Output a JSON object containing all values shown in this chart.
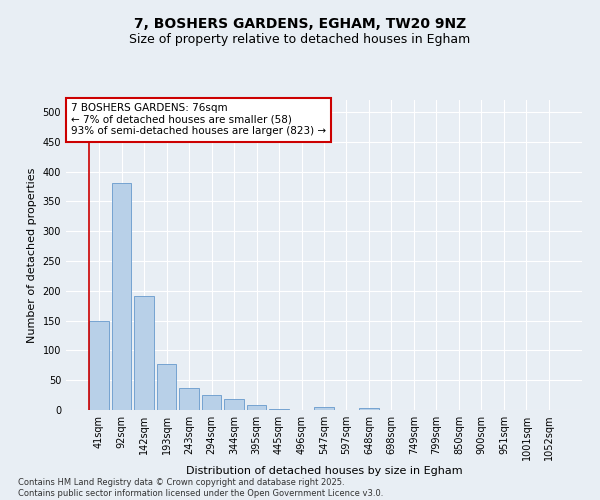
{
  "title": "7, BOSHERS GARDENS, EGHAM, TW20 9NZ",
  "subtitle": "Size of property relative to detached houses in Egham",
  "xlabel": "Distribution of detached houses by size in Egham",
  "ylabel": "Number of detached properties",
  "bar_color": "#b8d0e8",
  "bar_edge_color": "#6699cc",
  "categories": [
    "41sqm",
    "92sqm",
    "142sqm",
    "193sqm",
    "243sqm",
    "294sqm",
    "344sqm",
    "395sqm",
    "445sqm",
    "496sqm",
    "547sqm",
    "597sqm",
    "648sqm",
    "698sqm",
    "749sqm",
    "799sqm",
    "850sqm",
    "900sqm",
    "951sqm",
    "1001sqm",
    "1052sqm"
  ],
  "values": [
    150,
    380,
    192,
    77,
    37,
    25,
    18,
    8,
    2,
    0,
    5,
    0,
    3,
    0,
    0,
    0,
    0,
    0,
    0,
    0,
    0
  ],
  "ylim": [
    0,
    520
  ],
  "yticks": [
    0,
    50,
    100,
    150,
    200,
    250,
    300,
    350,
    400,
    450,
    500
  ],
  "annotation_box_text": "7 BOSHERS GARDENS: 76sqm\n← 7% of detached houses are smaller (58)\n93% of semi-detached houses are larger (823) →",
  "annotation_box_color": "#cc0000",
  "annotation_box_fill": "#ffffff",
  "vline_color": "#cc0000",
  "background_color": "#e8eef4",
  "grid_color": "#ffffff",
  "footer_line1": "Contains HM Land Registry data © Crown copyright and database right 2025.",
  "footer_line2": "Contains public sector information licensed under the Open Government Licence v3.0.",
  "title_fontsize": 10,
  "subtitle_fontsize": 9,
  "tick_fontsize": 7,
  "ylabel_fontsize": 8,
  "xlabel_fontsize": 8,
  "annotation_fontsize": 7.5,
  "footer_fontsize": 6
}
